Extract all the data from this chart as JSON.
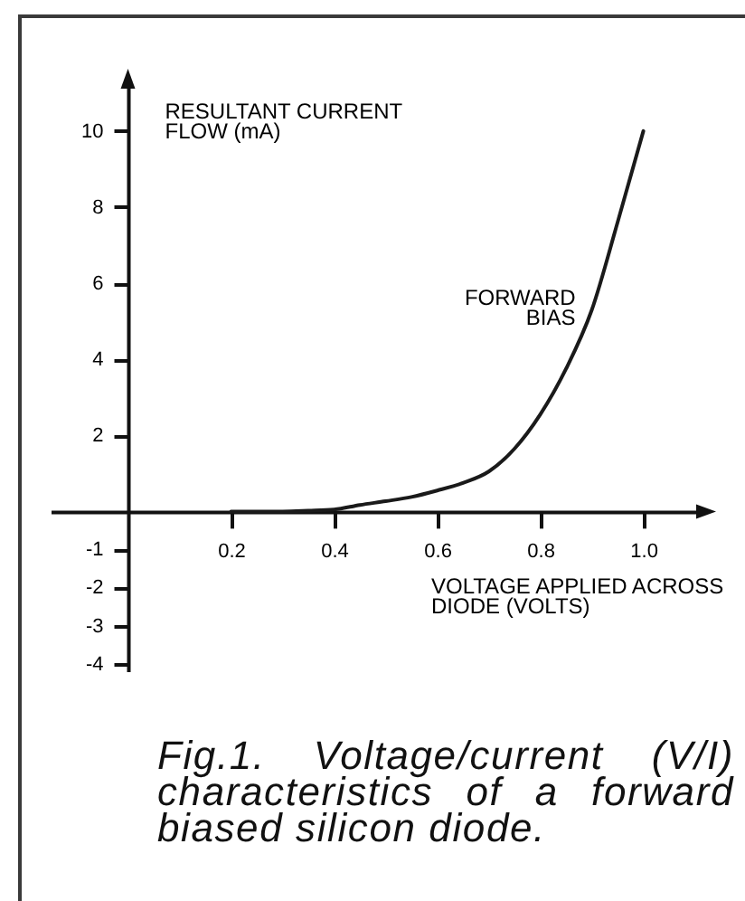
{
  "chart_data": {
    "type": "line",
    "xlabel": "VOLTAGE APPLIED ACROSS DIODE (VOLTS)",
    "ylabel": "RESULTANT CURRENT FLOW (mA)",
    "annotations": [
      "Fig.1. Voltage/current (V/I) characteristics of a forward biased silicon diode."
    ],
    "xlim": [
      -0.15,
      1.12
    ],
    "ylim": [
      -4.2,
      11.4
    ],
    "xticks": [
      0.2,
      0.4,
      0.6,
      0.8,
      {
        "value": 1,
        "label": "1.0"
      }
    ],
    "yticks": [
      -4,
      -3,
      -2,
      -1,
      2,
      4,
      6,
      8,
      10
    ],
    "grid": false,
    "legend": false,
    "marker": "none",
    "line_style": "solid",
    "x": [
      0.2,
      0.3,
      0.35,
      0.4,
      0.45,
      0.5,
      0.55,
      0.6,
      0.65,
      0.7,
      0.75,
      0.8,
      0.85,
      0.9,
      0.95,
      1.0
    ],
    "series": [
      {
        "name": "FORWARD BIAS",
        "color": "#1a1a1a",
        "values": [
          0,
          0,
          0.02,
          0.05,
          0.17,
          0.27,
          0.38,
          0.55,
          0.75,
          1.05,
          1.65,
          2.55,
          3.75,
          5.3,
          7.6,
          10
        ]
      }
    ]
  }
}
